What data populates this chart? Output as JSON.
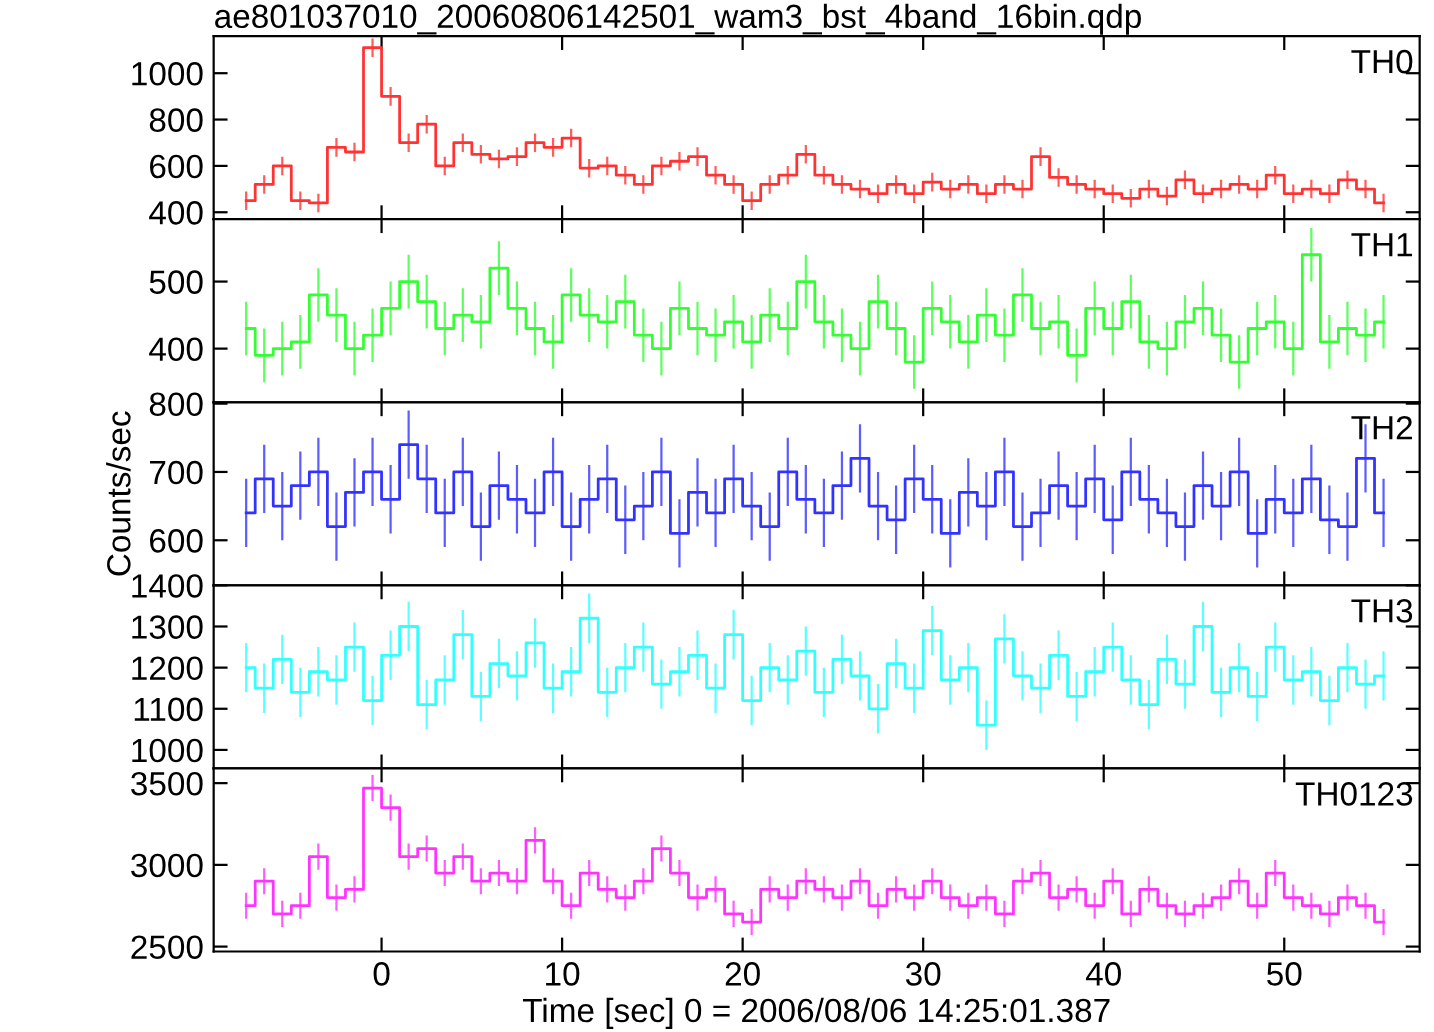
{
  "chart_data": [
    {
      "type": "step",
      "title": "ae801037010_20060806142501_wam3_bst_4band_16bin.qdp",
      "x": [
        -7.5,
        -6.5,
        -5.5,
        -4.5,
        -3.5,
        -2.5,
        -1.5,
        -0.5,
        0.5,
        1.5,
        2.5,
        3.5,
        4.5,
        5.5,
        6.5,
        7.5,
        8.5,
        9.5,
        10.5,
        11.5,
        12.5,
        13.5,
        14.5,
        15.5,
        16.5,
        17.5,
        18.5,
        19.5,
        20.5,
        21.5,
        22.5,
        23.5,
        24.5,
        25.5,
        26.5,
        27.5,
        28.5,
        29.5,
        30.5,
        31.5,
        32.5,
        33.5,
        34.5,
        35.5,
        36.5,
        37.5,
        38.5,
        39.5,
        40.5,
        41.5,
        42.5,
        43.5,
        44.5,
        45.5,
        46.5,
        47.5,
        48.5,
        49.5,
        50.5,
        51.5,
        52.5,
        53.5,
        54.5,
        55.5
      ],
      "series": [
        {
          "name": "TH0",
          "color": "#ff3333",
          "values": [
            450,
            520,
            600,
            450,
            440,
            680,
            660,
            1110,
            900,
            700,
            780,
            600,
            700,
            650,
            630,
            640,
            700,
            680,
            720,
            590,
            600,
            560,
            520,
            600,
            620,
            640,
            560,
            520,
            450,
            520,
            560,
            650,
            560,
            520,
            500,
            480,
            520,
            480,
            530,
            500,
            520,
            480,
            520,
            500,
            640,
            550,
            520,
            500,
            480,
            460,
            500,
            470,
            540,
            480,
            500,
            520,
            500,
            560,
            480,
            500,
            480,
            540,
            500,
            440
          ],
          "errors": [
            40,
            40,
            40,
            40,
            40,
            40,
            40,
            40,
            40,
            40,
            40,
            40,
            40,
            40,
            40,
            40,
            40,
            40,
            40,
            40,
            40,
            40,
            40,
            40,
            40,
            40,
            40,
            40,
            40,
            40,
            40,
            40,
            40,
            40,
            40,
            40,
            40,
            40,
            40,
            40,
            40,
            40,
            40,
            40,
            40,
            40,
            40,
            40,
            40,
            40,
            40,
            40,
            40,
            40,
            40,
            40,
            40,
            40,
            40,
            40,
            40,
            40,
            40,
            40
          ]
        }
      ],
      "xlim": [
        -9.3,
        57.5
      ],
      "xticks": [
        0,
        10,
        20,
        30,
        40,
        50
      ],
      "ylim": [
        370,
        1160
      ],
      "yticks": [
        400,
        600,
        800,
        1000
      ],
      "tick_labels": "y"
    },
    {
      "type": "step",
      "x": [
        -7.5,
        -6.5,
        -5.5,
        -4.5,
        -3.5,
        -2.5,
        -1.5,
        -0.5,
        0.5,
        1.5,
        2.5,
        3.5,
        4.5,
        5.5,
        6.5,
        7.5,
        8.5,
        9.5,
        10.5,
        11.5,
        12.5,
        13.5,
        14.5,
        15.5,
        16.5,
        17.5,
        18.5,
        19.5,
        20.5,
        21.5,
        22.5,
        23.5,
        24.5,
        25.5,
        26.5,
        27.5,
        28.5,
        29.5,
        30.5,
        31.5,
        32.5,
        33.5,
        34.5,
        35.5,
        36.5,
        37.5,
        38.5,
        39.5,
        40.5,
        41.5,
        42.5,
        43.5,
        44.5,
        45.5,
        46.5,
        47.5,
        48.5,
        49.5,
        50.5,
        51.5,
        52.5,
        53.5,
        54.5,
        55.5
      ],
      "series": [
        {
          "name": "TH1",
          "color": "#33ff33",
          "values": [
            430,
            390,
            400,
            410,
            480,
            450,
            400,
            420,
            460,
            500,
            470,
            430,
            450,
            440,
            520,
            460,
            430,
            410,
            480,
            450,
            440,
            470,
            420,
            400,
            460,
            430,
            420,
            440,
            410,
            450,
            430,
            500,
            440,
            420,
            400,
            470,
            430,
            380,
            460,
            440,
            410,
            450,
            420,
            480,
            430,
            440,
            390,
            460,
            430,
            470,
            410,
            400,
            440,
            460,
            420,
            380,
            430,
            440,
            400,
            540,
            410,
            430,
            420,
            440
          ],
          "errors": [
            40,
            40,
            40,
            40,
            40,
            40,
            40,
            40,
            40,
            40,
            40,
            40,
            40,
            40,
            40,
            40,
            40,
            40,
            40,
            40,
            40,
            40,
            40,
            40,
            40,
            40,
            40,
            40,
            40,
            40,
            40,
            40,
            40,
            40,
            40,
            40,
            40,
            40,
            40,
            40,
            40,
            40,
            40,
            40,
            40,
            40,
            40,
            40,
            40,
            40,
            40,
            40,
            40,
            40,
            40,
            40,
            40,
            40,
            40,
            40,
            40,
            40,
            40,
            40
          ]
        }
      ],
      "xlim": [
        -9.3,
        57.5
      ],
      "xticks": [
        0,
        10,
        20,
        30,
        40,
        50
      ],
      "ylim": [
        320,
        593
      ],
      "yticks": [
        400,
        500
      ],
      "tick_labels": "y"
    },
    {
      "type": "step",
      "ylabel": "Counts/sec",
      "x": [
        -7.5,
        -6.5,
        -5.5,
        -4.5,
        -3.5,
        -2.5,
        -1.5,
        -0.5,
        0.5,
        1.5,
        2.5,
        3.5,
        4.5,
        5.5,
        6.5,
        7.5,
        8.5,
        9.5,
        10.5,
        11.5,
        12.5,
        13.5,
        14.5,
        15.5,
        16.5,
        17.5,
        18.5,
        19.5,
        20.5,
        21.5,
        22.5,
        23.5,
        24.5,
        25.5,
        26.5,
        27.5,
        28.5,
        29.5,
        30.5,
        31.5,
        32.5,
        33.5,
        34.5,
        35.5,
        36.5,
        37.5,
        38.5,
        39.5,
        40.5,
        41.5,
        42.5,
        43.5,
        44.5,
        45.5,
        46.5,
        47.5,
        48.5,
        49.5,
        50.5,
        51.5,
        52.5,
        53.5,
        54.5,
        55.5
      ],
      "series": [
        {
          "name": "TH2",
          "color": "#3333ff",
          "values": [
            640,
            690,
            650,
            680,
            700,
            620,
            670,
            700,
            660,
            740,
            690,
            640,
            700,
            620,
            680,
            660,
            640,
            700,
            620,
            660,
            690,
            630,
            650,
            700,
            610,
            670,
            640,
            690,
            650,
            620,
            700,
            660,
            640,
            680,
            720,
            650,
            630,
            690,
            660,
            610,
            670,
            650,
            700,
            620,
            640,
            680,
            650,
            690,
            630,
            700,
            660,
            640,
            620,
            680,
            650,
            700,
            610,
            660,
            640,
            690,
            630,
            620,
            720,
            640
          ],
          "errors": [
            50,
            50,
            50,
            50,
            50,
            50,
            50,
            50,
            50,
            50,
            50,
            50,
            50,
            50,
            50,
            50,
            50,
            50,
            50,
            50,
            50,
            50,
            50,
            50,
            50,
            50,
            50,
            50,
            50,
            50,
            50,
            50,
            50,
            50,
            50,
            50,
            50,
            50,
            50,
            50,
            50,
            50,
            50,
            50,
            50,
            50,
            50,
            50,
            50,
            50,
            50,
            50,
            50,
            50,
            50,
            50,
            50,
            50,
            50,
            50,
            50,
            50,
            50,
            50
          ]
        }
      ],
      "xlim": [
        -9.3,
        57.5
      ],
      "xticks": [
        0,
        10,
        20,
        30,
        40,
        50
      ],
      "ylim": [
        534,
        802
      ],
      "yticks": [
        600,
        700,
        800
      ],
      "tick_labels": "y"
    },
    {
      "type": "step",
      "x": [
        -7.5,
        -6.5,
        -5.5,
        -4.5,
        -3.5,
        -2.5,
        -1.5,
        -0.5,
        0.5,
        1.5,
        2.5,
        3.5,
        4.5,
        5.5,
        6.5,
        7.5,
        8.5,
        9.5,
        10.5,
        11.5,
        12.5,
        13.5,
        14.5,
        15.5,
        16.5,
        17.5,
        18.5,
        19.5,
        20.5,
        21.5,
        22.5,
        23.5,
        24.5,
        25.5,
        26.5,
        27.5,
        28.5,
        29.5,
        30.5,
        31.5,
        32.5,
        33.5,
        34.5,
        35.5,
        36.5,
        37.5,
        38.5,
        39.5,
        40.5,
        41.5,
        42.5,
        43.5,
        44.5,
        45.5,
        46.5,
        47.5,
        48.5,
        49.5,
        50.5,
        51.5,
        52.5,
        53.5,
        54.5,
        55.5
      ],
      "series": [
        {
          "name": "TH3",
          "color": "#33ffff",
          "values": [
            1200,
            1150,
            1220,
            1140,
            1190,
            1170,
            1250,
            1120,
            1230,
            1300,
            1110,
            1170,
            1280,
            1130,
            1210,
            1180,
            1260,
            1150,
            1190,
            1320,
            1140,
            1200,
            1250,
            1160,
            1190,
            1230,
            1150,
            1280,
            1120,
            1200,
            1170,
            1240,
            1140,
            1220,
            1180,
            1100,
            1210,
            1150,
            1290,
            1170,
            1200,
            1060,
            1270,
            1180,
            1150,
            1230,
            1130,
            1190,
            1250,
            1170,
            1110,
            1220,
            1160,
            1300,
            1140,
            1200,
            1130,
            1250,
            1170,
            1190,
            1120,
            1200,
            1160,
            1180
          ],
          "errors": [
            60,
            60,
            60,
            60,
            60,
            60,
            60,
            60,
            60,
            60,
            60,
            60,
            60,
            60,
            60,
            60,
            60,
            60,
            60,
            60,
            60,
            60,
            60,
            60,
            60,
            60,
            60,
            60,
            60,
            60,
            60,
            60,
            60,
            60,
            60,
            60,
            60,
            60,
            60,
            60,
            60,
            60,
            60,
            60,
            60,
            60,
            60,
            60,
            60,
            60,
            60,
            60,
            60,
            60,
            60,
            60,
            60,
            60,
            60,
            60,
            60,
            60,
            60,
            60
          ]
        }
      ],
      "xlim": [
        -9.3,
        57.5
      ],
      "xticks": [
        0,
        10,
        20,
        30,
        40,
        50
      ],
      "ylim": [
        955,
        1400
      ],
      "yticks": [
        1000,
        1100,
        1200,
        1300,
        1400
      ],
      "tick_labels": "y"
    },
    {
      "type": "step",
      "xlabel": "Time [sec] 0 = 2006/08/06 14:25:01.387",
      "x": [
        -7.5,
        -6.5,
        -5.5,
        -4.5,
        -3.5,
        -2.5,
        -1.5,
        -0.5,
        0.5,
        1.5,
        2.5,
        3.5,
        4.5,
        5.5,
        6.5,
        7.5,
        8.5,
        9.5,
        10.5,
        11.5,
        12.5,
        13.5,
        14.5,
        15.5,
        16.5,
        17.5,
        18.5,
        19.5,
        20.5,
        21.5,
        22.5,
        23.5,
        24.5,
        25.5,
        26.5,
        27.5,
        28.5,
        29.5,
        30.5,
        31.5,
        32.5,
        33.5,
        34.5,
        35.5,
        36.5,
        37.5,
        38.5,
        39.5,
        40.5,
        41.5,
        42.5,
        43.5,
        44.5,
        45.5,
        46.5,
        47.5,
        48.5,
        49.5,
        50.5,
        51.5,
        52.5,
        53.5,
        54.5,
        55.5
      ],
      "series": [
        {
          "name": "TH0123",
          "color": "#ff33ff",
          "values": [
            2750,
            2900,
            2700,
            2750,
            3050,
            2800,
            2850,
            3470,
            3350,
            3050,
            3100,
            2950,
            3050,
            2900,
            2950,
            2900,
            3150,
            2900,
            2750,
            2950,
            2850,
            2800,
            2900,
            3100,
            2950,
            2800,
            2850,
            2700,
            2650,
            2850,
            2800,
            2900,
            2850,
            2800,
            2900,
            2750,
            2850,
            2800,
            2900,
            2800,
            2750,
            2800,
            2700,
            2900,
            2950,
            2800,
            2850,
            2750,
            2900,
            2700,
            2850,
            2750,
            2700,
            2750,
            2800,
            2900,
            2750,
            2950,
            2800,
            2750,
            2700,
            2800,
            2750,
            2650
          ],
          "errors": [
            80,
            80,
            80,
            80,
            80,
            80,
            80,
            80,
            80,
            80,
            80,
            80,
            80,
            80,
            80,
            80,
            80,
            80,
            80,
            80,
            80,
            80,
            80,
            80,
            80,
            80,
            80,
            80,
            80,
            80,
            80,
            80,
            80,
            80,
            80,
            80,
            80,
            80,
            80,
            80,
            80,
            80,
            80,
            80,
            80,
            80,
            80,
            80,
            80,
            80,
            80,
            80,
            80,
            80,
            80,
            80,
            80,
            80,
            80,
            80,
            80,
            80,
            80,
            80
          ]
        }
      ],
      "xlim": [
        -9.3,
        57.5
      ],
      "xticks": [
        0,
        10,
        20,
        30,
        40,
        50
      ],
      "ylim": [
        2470,
        3590
      ],
      "yticks": [
        2500,
        3000,
        3500
      ]
    }
  ]
}
